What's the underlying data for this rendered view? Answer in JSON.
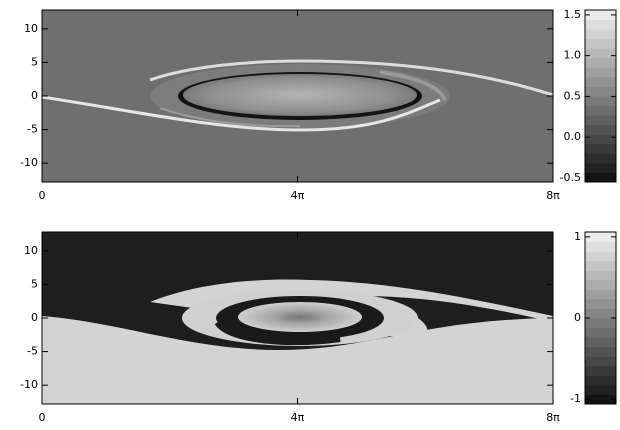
{
  "chart_data": [
    {
      "type": "heatmap",
      "xlim": [
        0,
        25.133
      ],
      "xticks": [
        0,
        {
          "value": 12.566,
          "label": "4π"
        },
        {
          "value": 25.133,
          "label": "8π"
        }
      ],
      "ylim": [
        -12.8,
        12.8
      ],
      "yticks": [
        -10,
        -5,
        0,
        5,
        10
      ],
      "colorbar_lim": [
        -0.55,
        1.56
      ],
      "colorbar_ticks": [
        -0.5,
        {
          "value": 0,
          "label": "0.0"
        },
        0.5,
        {
          "value": 1,
          "label": "1.0"
        },
        1.5
      ]
    },
    {
      "type": "heatmap",
      "xlim": [
        0,
        25.133
      ],
      "xticks": [
        0,
        {
          "value": 12.566,
          "label": "4π"
        },
        {
          "value": 25.133,
          "label": "8π"
        }
      ],
      "ylim": [
        -12.8,
        12.8
      ],
      "yticks": [
        -10,
        -5,
        0,
        5,
        10
      ],
      "colorbar_lim": [
        -1.06,
        1.06
      ],
      "colorbar_ticks": [
        -1,
        0,
        1
      ]
    }
  ]
}
